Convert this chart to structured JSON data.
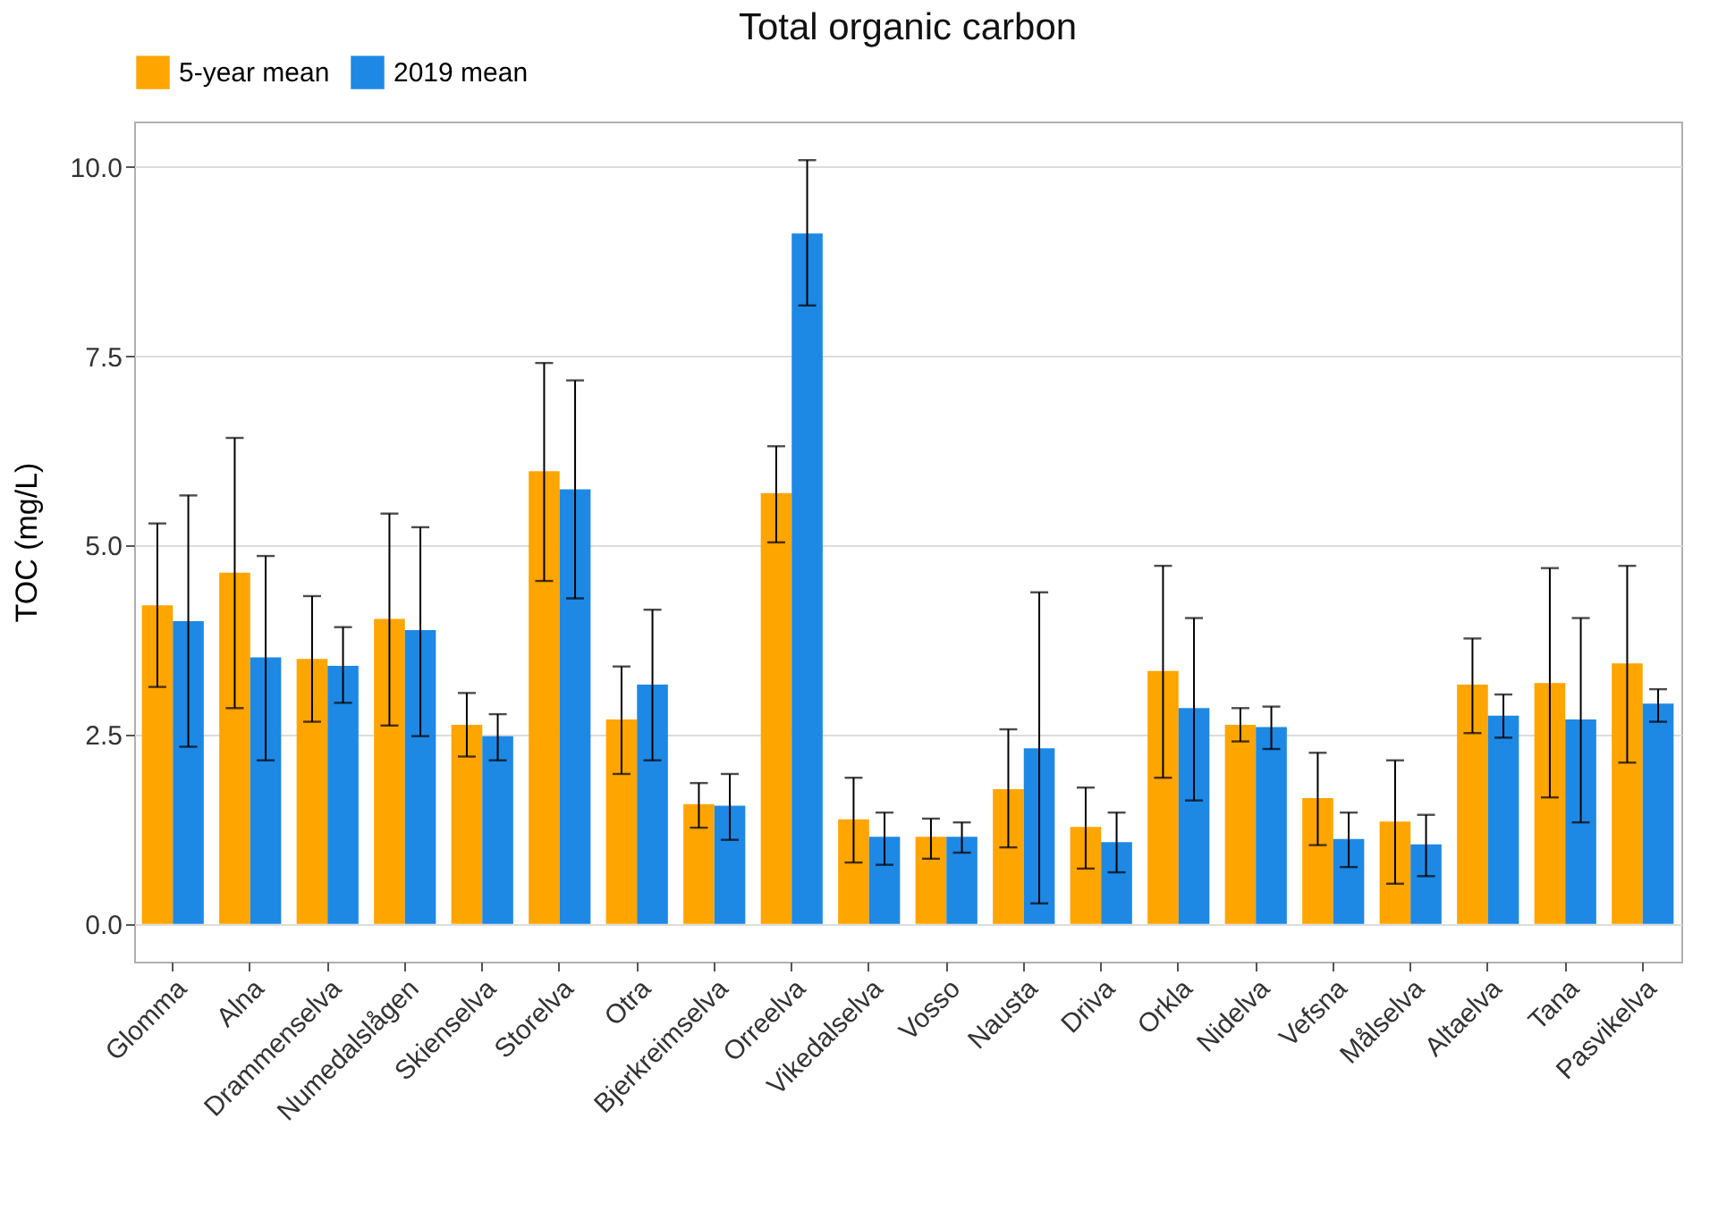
{
  "chart_data": {
    "type": "bar",
    "title": "Total organic carbon",
    "ylabel": "TOC (mg/L)",
    "categories": [
      "Glomma",
      "Alna",
      "Drammenselva",
      "Numedalslågen",
      "Skienselva",
      "Storelva",
      "Otra",
      "Bjerkreimselva",
      "Orreelva",
      "Vikedalselva",
      "Vosso",
      "Nausta",
      "Driva",
      "Orkla",
      "Nidelva",
      "Vefsna",
      "Målselva",
      "Altaelva",
      "Tana",
      "Pasvikelva"
    ],
    "series": [
      {
        "name": "5-year mean",
        "color": "#ffa500",
        "values": [
          4.21,
          4.64,
          3.5,
          4.03,
          2.63,
          5.98,
          2.7,
          1.58,
          5.69,
          1.38,
          1.15,
          1.78,
          1.28,
          3.34,
          2.63,
          1.66,
          1.35,
          3.16,
          3.18,
          3.44
        ],
        "errors": [
          [
            3.13,
            5.29
          ],
          [
            2.85,
            6.42
          ],
          [
            2.67,
            4.33
          ],
          [
            2.62,
            5.42
          ],
          [
            2.21,
            3.05
          ],
          [
            4.53,
            7.41
          ],
          [
            1.98,
            3.4
          ],
          [
            1.27,
            1.86
          ],
          [
            5.04,
            6.31
          ],
          [
            0.81,
            1.93
          ],
          [
            0.86,
            1.39
          ],
          [
            1.01,
            2.57
          ],
          [
            0.73,
            1.8
          ],
          [
            1.93,
            4.73
          ],
          [
            2.41,
            2.85
          ],
          [
            1.04,
            2.26
          ],
          [
            0.53,
            2.16
          ],
          [
            2.52,
            3.77
          ],
          [
            1.67,
            4.7
          ],
          [
            2.13,
            4.73
          ]
        ]
      },
      {
        "name": "2019 mean",
        "color": "#1e88e5",
        "values": [
          4.0,
          3.52,
          3.41,
          3.88,
          2.48,
          5.74,
          3.16,
          1.56,
          9.12,
          1.15,
          1.15,
          2.32,
          1.08,
          2.85,
          2.6,
          1.12,
          1.05,
          2.75,
          2.7,
          2.91
        ],
        "errors": [
          [
            2.34,
            5.66
          ],
          [
            2.16,
            4.86
          ],
          [
            2.92,
            3.92
          ],
          [
            2.48,
            5.24
          ],
          [
            2.16,
            2.77
          ],
          [
            4.3,
            7.18
          ],
          [
            2.16,
            4.15
          ],
          [
            1.11,
            1.98
          ],
          [
            8.17,
            10.09
          ],
          [
            0.78,
            1.47
          ],
          [
            0.94,
            1.34
          ],
          [
            0.27,
            4.38
          ],
          [
            0.68,
            1.47
          ],
          [
            1.63,
            4.04
          ],
          [
            2.31,
            2.87
          ],
          [
            0.75,
            1.47
          ],
          [
            0.63,
            1.44
          ],
          [
            2.46,
            3.03
          ],
          [
            1.34,
            4.04
          ],
          [
            2.67,
            3.1
          ]
        ]
      }
    ],
    "ylim": [
      -0.5,
      10.6
    ],
    "yticks": [
      {
        "value": 0,
        "label": "0.0"
      },
      {
        "value": 2.5,
        "label": "2.5"
      },
      {
        "value": 5,
        "label": "5.0"
      },
      {
        "value": 7.5,
        "label": "7.5"
      },
      {
        "value": 10,
        "label": "10.0"
      }
    ],
    "grid": "y",
    "legend": "top"
  }
}
